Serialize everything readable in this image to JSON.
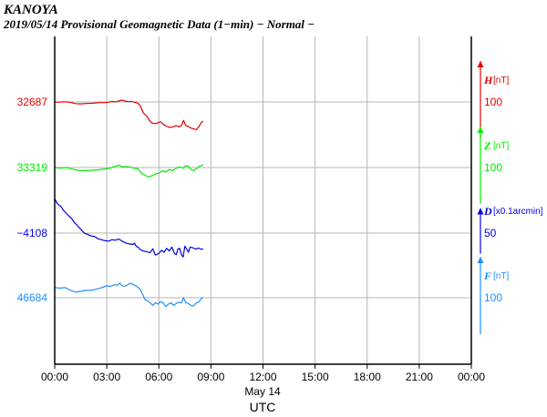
{
  "header": {
    "station": "KANOYA",
    "subtitle": "2019/05/14  Provisional Geomagnetic Data (1−min)  − Normal −"
  },
  "chart_data": {
    "type": "line",
    "xlabel": "UTC",
    "date_label": "May 14",
    "x_ticks": [
      "00:00",
      "03:00",
      "06:00",
      "09:00",
      "12:00",
      "15:00",
      "18:00",
      "21:00",
      "00:00"
    ],
    "x_range_hours": [
      0,
      24
    ],
    "grid": true,
    "series": [
      {
        "name": "H",
        "unit": "[nT]",
        "color": "#e60000",
        "left_label": "32687",
        "scale_label": "100",
        "points": [
          [
            0,
            32687.0
          ],
          [
            0.2,
            32686.6
          ],
          [
            0.5,
            32687.3
          ],
          [
            0.8,
            32686.8
          ],
          [
            1.2,
            32684.4
          ],
          [
            1.5,
            32684.0
          ],
          [
            1.8,
            32684.6
          ],
          [
            2.2,
            32685.0
          ],
          [
            2.6,
            32686.0
          ],
          [
            3.0,
            32686.2
          ],
          [
            3.3,
            32687.8
          ],
          [
            3.5,
            32687.2
          ],
          [
            3.7,
            32688.4
          ],
          [
            3.85,
            32689.8
          ],
          [
            4.0,
            32689.2
          ],
          [
            4.1,
            32687.8
          ],
          [
            4.25,
            32687.4
          ],
          [
            4.4,
            32688.0
          ],
          [
            4.6,
            32686.5
          ],
          [
            4.8,
            32685.0
          ],
          [
            4.95,
            32680.0
          ],
          [
            5.1,
            32670.0
          ],
          [
            5.3,
            32665.0
          ],
          [
            5.45,
            32658.0
          ],
          [
            5.6,
            32654.0
          ],
          [
            5.8,
            32653.0
          ],
          [
            5.95,
            32654.4
          ],
          [
            6.1,
            32656.0
          ],
          [
            6.3,
            32651.0
          ],
          [
            6.45,
            32649.0
          ],
          [
            6.6,
            32647.0
          ],
          [
            6.8,
            32648.0
          ],
          [
            7.0,
            32650.0
          ],
          [
            7.15,
            32648.0
          ],
          [
            7.3,
            32650.0
          ],
          [
            7.42,
            32658.0
          ],
          [
            7.55,
            32650.0
          ],
          [
            7.7,
            32648.6
          ],
          [
            7.85,
            32646.0
          ],
          [
            8.0,
            32645.0
          ],
          [
            8.15,
            32643.4
          ],
          [
            8.3,
            32648.0
          ],
          [
            8.45,
            32655.0
          ],
          [
            8.55,
            32657.0
          ]
        ]
      },
      {
        "name": "Z",
        "unit": "[nT]",
        "color": "#00ee00",
        "left_label": "33319",
        "scale_label": "100",
        "points": [
          [
            0,
            33319.0
          ],
          [
            0.3,
            33318.2
          ],
          [
            0.7,
            33318.8
          ],
          [
            1.0,
            33316.6
          ],
          [
            1.5,
            33314.0
          ],
          [
            2.0,
            33314.6
          ],
          [
            2.5,
            33315.4
          ],
          [
            3.0,
            33317.0
          ],
          [
            3.3,
            33319.0
          ],
          [
            3.5,
            33321.2
          ],
          [
            3.7,
            33322.4
          ],
          [
            3.9,
            33319.8
          ],
          [
            4.1,
            33320.6
          ],
          [
            4.3,
            33320.2
          ],
          [
            4.5,
            33318.4
          ],
          [
            4.8,
            33316.8
          ],
          [
            5.0,
            33310.0
          ],
          [
            5.2,
            33307.0
          ],
          [
            5.4,
            33304.2
          ],
          [
            5.6,
            33306.0
          ],
          [
            5.8,
            33309.0
          ],
          [
            6.0,
            33310.0
          ],
          [
            6.2,
            33314.0
          ],
          [
            6.4,
            33312.0
          ],
          [
            6.6,
            33316.0
          ],
          [
            6.8,
            33314.0
          ],
          [
            7.0,
            33318.0
          ],
          [
            7.2,
            33320.0
          ],
          [
            7.4,
            33318.0
          ],
          [
            7.55,
            33322.0
          ],
          [
            7.7,
            33321.0
          ],
          [
            7.85,
            33316.0
          ],
          [
            8.0,
            33314.0
          ],
          [
            8.2,
            33318.0
          ],
          [
            8.35,
            33321.0
          ],
          [
            8.55,
            33323.0
          ]
        ]
      },
      {
        "name": "D",
        "unit": "[x0.1arcmin]",
        "color": "#0000e6",
        "left_label": "−4108",
        "scale_label": "50",
        "points": [
          [
            0,
            -4054.0
          ],
          [
            0.15,
            -4062.0
          ],
          [
            0.35,
            -4066.0
          ],
          [
            0.5,
            -4072.0
          ],
          [
            0.7,
            -4078.0
          ],
          [
            0.85,
            -4082.0
          ],
          [
            1.0,
            -4086.0
          ],
          [
            1.15,
            -4092.0
          ],
          [
            1.3,
            -4096.0
          ],
          [
            1.5,
            -4102.0
          ],
          [
            1.7,
            -4108.0
          ],
          [
            1.9,
            -4110.0
          ],
          [
            2.1,
            -4112.6
          ],
          [
            2.3,
            -4113.4
          ],
          [
            2.5,
            -4117.0
          ],
          [
            2.7,
            -4118.4
          ],
          [
            2.9,
            -4120.0
          ],
          [
            3.1,
            -4120.6
          ],
          [
            3.3,
            -4118.4
          ],
          [
            3.5,
            -4119.2
          ],
          [
            3.7,
            -4117.4
          ],
          [
            3.9,
            -4121.0
          ],
          [
            4.1,
            -4123.6
          ],
          [
            4.3,
            -4125.0
          ],
          [
            4.5,
            -4125.8
          ],
          [
            4.6,
            -4124.0
          ],
          [
            4.7,
            -4128.8
          ],
          [
            4.8,
            -4130.0
          ],
          [
            4.95,
            -4134.4
          ],
          [
            5.1,
            -4136.0
          ],
          [
            5.3,
            -4137.2
          ],
          [
            5.5,
            -4138.8
          ],
          [
            5.65,
            -4132.6
          ],
          [
            5.8,
            -4142.4
          ],
          [
            6.0,
            -4140.0
          ],
          [
            6.15,
            -4135.0
          ],
          [
            6.3,
            -4138.0
          ],
          [
            6.45,
            -4132.0
          ],
          [
            6.6,
            -4136.0
          ],
          [
            6.75,
            -4130.0
          ],
          [
            6.9,
            -4140.0
          ],
          [
            7.0,
            -4142.0
          ],
          [
            7.1,
            -4133.0
          ],
          [
            7.2,
            -4132.0
          ],
          [
            7.3,
            -4142.0
          ],
          [
            7.4,
            -4145.6
          ],
          [
            7.5,
            -4128.4
          ],
          [
            7.6,
            -4133.0
          ],
          [
            7.7,
            -4138.0
          ],
          [
            7.8,
            -4130.0
          ],
          [
            7.95,
            -4131.0
          ],
          [
            8.1,
            -4133.0
          ],
          [
            8.3,
            -4131.6
          ],
          [
            8.45,
            -4133.4
          ],
          [
            8.55,
            -4132.8
          ]
        ]
      },
      {
        "name": "F",
        "unit": "[nT]",
        "color": "#1e90ff",
        "left_label": "46684",
        "scale_label": "100",
        "points": [
          [
            0,
            46700.0
          ],
          [
            0.3,
            46699.0
          ],
          [
            0.6,
            46700.0
          ],
          [
            0.9,
            46695.6
          ],
          [
            1.2,
            46692.8
          ],
          [
            1.5,
            46694.0
          ],
          [
            1.8,
            46695.6
          ],
          [
            2.2,
            46696.0
          ],
          [
            2.6,
            46698.8
          ],
          [
            3.0,
            46702.6
          ],
          [
            3.2,
            46701.8
          ],
          [
            3.45,
            46704.4
          ],
          [
            3.6,
            46703.6
          ],
          [
            3.75,
            46707.0
          ],
          [
            3.85,
            46703.4
          ],
          [
            4.0,
            46701.8
          ],
          [
            4.15,
            46703.4
          ],
          [
            4.35,
            46706.8
          ],
          [
            4.55,
            46704.4
          ],
          [
            4.75,
            46701.4
          ],
          [
            4.9,
            46698.0
          ],
          [
            5.0,
            46693.0
          ],
          [
            5.1,
            46687.4
          ],
          [
            5.2,
            46681.0
          ],
          [
            5.35,
            46679.0
          ],
          [
            5.5,
            46676.0
          ],
          [
            5.65,
            46672.0
          ],
          [
            5.8,
            46676.0
          ],
          [
            5.95,
            46674.0
          ],
          [
            6.1,
            46678.0
          ],
          [
            6.25,
            46676.0
          ],
          [
            6.4,
            46670.0
          ],
          [
            6.55,
            46674.0
          ],
          [
            6.7,
            46676.0
          ],
          [
            6.85,
            46672.0
          ],
          [
            7.0,
            46675.0
          ],
          [
            7.15,
            46677.0
          ],
          [
            7.3,
            46676.0
          ],
          [
            7.42,
            46684.0
          ],
          [
            7.55,
            46676.0
          ],
          [
            7.7,
            46675.0
          ],
          [
            7.85,
            46672.0
          ],
          [
            8.0,
            46671.0
          ],
          [
            8.15,
            46676.0
          ],
          [
            8.3,
            46677.0
          ],
          [
            8.45,
            46683.0
          ],
          [
            8.55,
            46684.0
          ]
        ]
      }
    ]
  }
}
